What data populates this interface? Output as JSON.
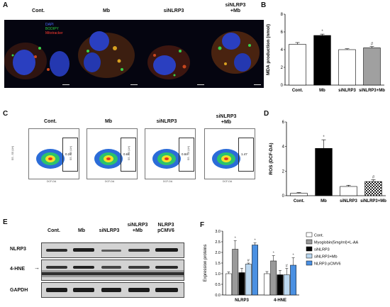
{
  "panels": {
    "A": "A",
    "B": "B",
    "C": "C",
    "D": "D",
    "E": "E",
    "F": "F"
  },
  "panel_a": {
    "columns": [
      "Cont.",
      "Mb",
      "siNLRP3",
      "siNLRP3\n+Mb"
    ],
    "legend": [
      {
        "label": "DAPI",
        "color": "#4a6cff"
      },
      {
        "label": "BODIPY",
        "color": "#2ecc40"
      },
      {
        "label": "Mitotracker",
        "color": "#ff3b2f"
      }
    ],
    "nucleus_color": "#2233aa",
    "mito_color": "#c8461e",
    "lipid_color": "#39d24a"
  },
  "panel_c": {
    "columns": [
      "Cont.",
      "Mb",
      "siNLRP3",
      "siNLRP3\n+Mb"
    ],
    "gate_values": [
      "0.22",
      "0.61",
      "0.84",
      "1.47"
    ],
    "x_axis": "DCF-DA",
    "y_axis": "SS - SS (LH)"
  },
  "panel_e": {
    "columns": [
      "Cont.",
      "Mb",
      "siNLRP3",
      "siNLRP3\n+Mb",
      "NLRP3\npCMV6"
    ],
    "rows": [
      "NLRP3",
      "4-HNE",
      "GAPDH"
    ]
  },
  "chart_data": [
    {
      "id": "B",
      "type": "bar",
      "categories": [
        "Cont.",
        "Mb",
        "siNLRP3",
        "siNLRP3+Mb"
      ],
      "values": [
        4.6,
        5.6,
        4.0,
        4.2
      ],
      "errors": [
        0.2,
        0.15,
        0.1,
        0.15
      ],
      "fills": [
        "#ffffff",
        "#000000",
        "#ffffff",
        "#a0a0a0"
      ],
      "markers": [
        "",
        "*",
        "",
        "#"
      ],
      "ylabel": "MDA production (nmol)",
      "ylim": [
        0,
        8
      ],
      "yticks": [
        0,
        2,
        4,
        6,
        8
      ]
    },
    {
      "id": "D",
      "type": "bar",
      "categories": [
        "Cont.",
        "Mb",
        "siNLRP3",
        "siNLRP3+Mb"
      ],
      "values": [
        0.2,
        3.85,
        0.75,
        1.15
      ],
      "errors": [
        0.05,
        0.7,
        0.1,
        0.15
      ],
      "fills": [
        "#ffffff",
        "#000000",
        "#ffffff",
        "checker"
      ],
      "markers": [
        "",
        "*",
        "",
        "#"
      ],
      "ylabel": "ROS (DCF-DA)",
      "ylim": [
        0,
        6
      ],
      "yticks": [
        0,
        2,
        4,
        6
      ]
    },
    {
      "id": "F",
      "type": "bar",
      "groups": [
        "NLRP3",
        "4-HNE"
      ],
      "series": [
        {
          "name": "Cont.",
          "color": "#ffffff",
          "values": [
            1.0,
            1.0
          ],
          "errors": [
            0.08,
            0.1
          ],
          "markers": [
            "",
            ""
          ]
        },
        {
          "name": "Myoglobin(5mg/ml)+L-AA",
          "color": "#9a9a9a",
          "values": [
            2.15,
            1.6
          ],
          "errors": [
            0.4,
            0.25
          ],
          "markers": [
            "*",
            "*"
          ]
        },
        {
          "name": "siNLRP3",
          "color": "#000000",
          "values": [
            1.05,
            0.95
          ],
          "errors": [
            0.2,
            0.2
          ],
          "markers": [
            "",
            ""
          ]
        },
        {
          "name": "siNLRP3+Mb",
          "color": "#bcd8f0",
          "values": [
            1.45,
            0.95
          ],
          "errors": [
            0.05,
            0.3
          ],
          "markers": [
            "#",
            "#"
          ]
        },
        {
          "name": "NLRP3 pCMV6",
          "color": "#4a90e2",
          "values": [
            2.35,
            1.4
          ],
          "errors": [
            0.1,
            0.35
          ],
          "markers": [
            "*",
            "*"
          ]
        }
      ],
      "ylabel": "Expression proteins",
      "ylim": [
        0,
        3.0
      ],
      "yticks": [
        0.0,
        0.5,
        1.0,
        1.5,
        2.0,
        2.5,
        3.0
      ]
    }
  ]
}
